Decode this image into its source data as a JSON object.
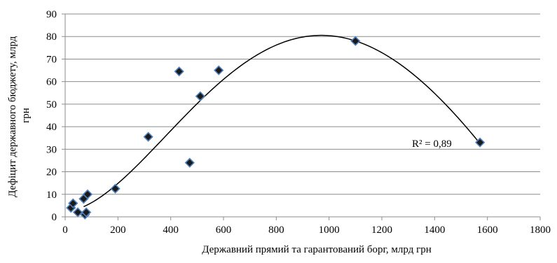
{
  "chart_data": {
    "type": "scatter",
    "title": "",
    "xlabel": "Державний прямий та гарантований борг, млрд грн",
    "ylabel_lines": [
      "Дефіцит державного бюджету, млрд",
      "грн"
    ],
    "xlim": [
      0,
      1800
    ],
    "ylim": [
      0,
      90
    ],
    "xticks": [
      0,
      200,
      400,
      600,
      800,
      1000,
      1200,
      1400,
      1600,
      1800
    ],
    "yticks": [
      0,
      10,
      20,
      30,
      40,
      50,
      60,
      70,
      80,
      90
    ],
    "grid": "horizontal",
    "legend": "none",
    "marker": "diamond",
    "marker_color": "#1a1a1a",
    "marker_edge_color": "#4f81bd",
    "points": [
      {
        "x": 22,
        "y": 4
      },
      {
        "x": 30,
        "y": 6
      },
      {
        "x": 48,
        "y": 2
      },
      {
        "x": 70,
        "y": 8
      },
      {
        "x": 75,
        "y": 1
      },
      {
        "x": 80,
        "y": 2
      },
      {
        "x": 85,
        "y": 10
      },
      {
        "x": 190,
        "y": 12.5
      },
      {
        "x": 315,
        "y": 35.5
      },
      {
        "x": 432,
        "y": 64.5
      },
      {
        "x": 472,
        "y": 24
      },
      {
        "x": 512,
        "y": 53.5
      },
      {
        "x": 582,
        "y": 65
      },
      {
        "x": 1100,
        "y": 78
      },
      {
        "x": 1572,
        "y": 33
      }
    ],
    "trendline": {
      "type": "polynomial",
      "x_range": [
        70,
        1572
      ],
      "color": "#000000",
      "label": "R² = 0,89",
      "r_squared": 0.89,
      "control_points": [
        {
          "x": 70,
          "y": 4.5
        },
        {
          "x": 300,
          "y": 26
        },
        {
          "x": 600,
          "y": 61
        },
        {
          "x": 960,
          "y": 80.5
        },
        {
          "x": 1300,
          "y": 65
        },
        {
          "x": 1572,
          "y": 32.5
        }
      ]
    }
  }
}
